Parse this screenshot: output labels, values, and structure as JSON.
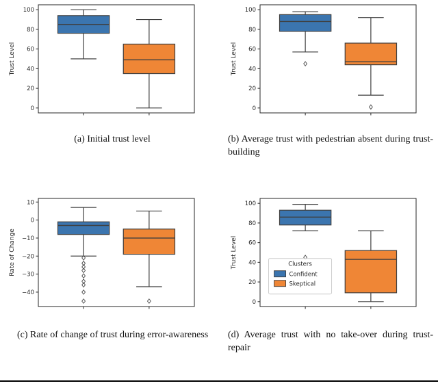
{
  "figure": {
    "background": "#ffffff"
  },
  "colors": {
    "confident": "#3b75af",
    "skeptical": "#ef8636",
    "box_edge": "#3f3f3f",
    "outlier": "#4a4a4a",
    "axis": "#262626"
  },
  "chart_data": [
    {
      "id": "a",
      "type": "box",
      "caption": "(a) Initial trust level",
      "ylabel": "Trust Level",
      "ylim": [
        -5,
        105
      ],
      "yticks": [
        0,
        20,
        40,
        60,
        80,
        100
      ],
      "categories": [
        "Confident",
        "Skeptical"
      ],
      "series": [
        {
          "name": "Confident",
          "color": "#3b75af",
          "whislo": 50,
          "q1": 76,
          "med": 85,
          "q3": 94,
          "whishi": 100,
          "outliers": []
        },
        {
          "name": "Skeptical",
          "color": "#ef8636",
          "whislo": 0,
          "q1": 35,
          "med": 49,
          "q3": 65,
          "whishi": 90,
          "outliers": []
        }
      ]
    },
    {
      "id": "b",
      "type": "box",
      "caption": "(b) Average trust with pedestrian absent during trust-building",
      "ylabel": "Trust Level",
      "ylim": [
        -5,
        105
      ],
      "yticks": [
        0,
        20,
        40,
        60,
        80,
        100
      ],
      "categories": [
        "Confident",
        "Skeptical"
      ],
      "series": [
        {
          "name": "Confident",
          "color": "#3b75af",
          "whislo": 57,
          "q1": 78,
          "med": 88,
          "q3": 95,
          "whishi": 98,
          "outliers": [
            45
          ]
        },
        {
          "name": "Skeptical",
          "color": "#ef8636",
          "whislo": 13,
          "q1": 44,
          "med": 47,
          "q3": 66,
          "whishi": 92,
          "outliers": [
            1
          ]
        }
      ]
    },
    {
      "id": "c",
      "type": "box",
      "caption": "(c) Rate of change of trust during error-awareness",
      "ylabel": "Rate of Change",
      "ylim": [
        -48,
        12
      ],
      "yticks": [
        10,
        0,
        -10,
        -20,
        -30,
        -40
      ],
      "categories": [
        "Confident",
        "Skeptical"
      ],
      "series": [
        {
          "name": "Confident",
          "color": "#3b75af",
          "whislo": -20,
          "q1": -8,
          "med": -3,
          "q3": -1,
          "whishi": 7,
          "outliers": [
            -21,
            -24,
            -26,
            -28,
            -31,
            -34,
            -36,
            -40,
            -45
          ]
        },
        {
          "name": "Skeptical",
          "color": "#ef8636",
          "whislo": -37,
          "q1": -19,
          "med": -10,
          "q3": -5,
          "whishi": 5,
          "outliers": [
            -45
          ]
        }
      ]
    },
    {
      "id": "d",
      "type": "box",
      "caption": "(d) Average trust with no take-over during trust-repair",
      "ylabel": "Trust Level",
      "ylim": [
        -5,
        105
      ],
      "yticks": [
        0,
        20,
        40,
        60,
        80,
        100
      ],
      "categories": [
        "Confident",
        "Skeptical"
      ],
      "legend": {
        "title": "Clusters",
        "entries": [
          {
            "label": "Confident",
            "color": "#3b75af"
          },
          {
            "label": "Skeptical",
            "color": "#ef8636"
          }
        ]
      },
      "series": [
        {
          "name": "Confident",
          "color": "#3b75af",
          "whislo": 72,
          "q1": 78,
          "med": 86,
          "q3": 93,
          "whishi": 99,
          "outliers": [
            45
          ]
        },
        {
          "name": "Skeptical",
          "color": "#ef8636",
          "whislo": 0,
          "q1": 9,
          "med": 43,
          "q3": 52,
          "whishi": 72,
          "outliers": []
        }
      ]
    }
  ]
}
